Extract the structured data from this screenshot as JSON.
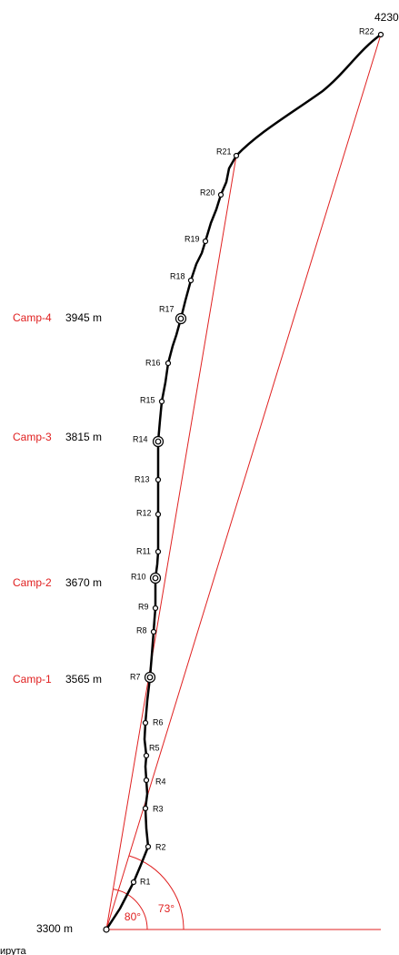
{
  "summit": "4230",
  "base": "3300 m",
  "route_points": [
    "R1",
    "R2",
    "R3",
    "R4",
    "R5",
    "R6",
    "R7",
    "R8",
    "R9",
    "R10",
    "R11",
    "R12",
    "R13",
    "R14",
    "R15",
    "R16",
    "R17",
    "R18",
    "R19",
    "R20",
    "R21",
    "R22"
  ],
  "camps": [
    {
      "name": "Camp-4",
      "altitude": "3945 m"
    },
    {
      "name": "Camp-3",
      "altitude": "3815 m"
    },
    {
      "name": "Camp-2",
      "altitude": "3670 m"
    },
    {
      "name": "Camp-1",
      "altitude": "3565 m"
    }
  ],
  "angles": [
    "80°",
    "73°"
  ],
  "footer": "ирута"
}
